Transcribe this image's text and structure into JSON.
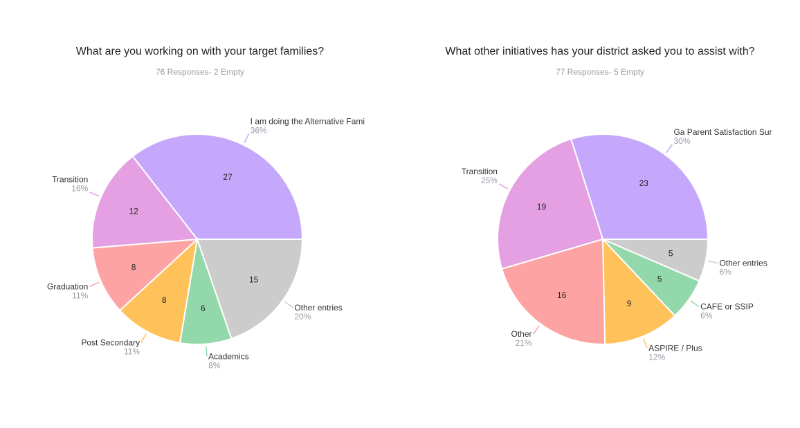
{
  "chart_data": [
    {
      "type": "pie",
      "title": "What are you working on with your target families?",
      "subtitle": "76 Responses- 2 Empty",
      "slices": [
        {
          "label": "I am doing the Alternative Fami",
          "value": 27,
          "percent": "36%",
          "color": "#c5a8fb"
        },
        {
          "label": "Other entries",
          "value": 15,
          "percent": "20%",
          "color": "#cccccc"
        },
        {
          "label": "Academics",
          "value": 6,
          "percent": "8%",
          "color": "#93d8aa"
        },
        {
          "label": "Post Secondary",
          "value": 8,
          "percent": "11%",
          "color": "#ffc25a"
        },
        {
          "label": "Graduation",
          "value": 8,
          "percent": "11%",
          "color": "#fea3a3"
        },
        {
          "label": "Transition",
          "value": 12,
          "percent": "16%",
          "color": "#e4a0e2"
        }
      ]
    },
    {
      "type": "pie",
      "title": "What other initiatives has your district asked you to assist with?",
      "subtitle": "77 Responses- 5 Empty",
      "slices": [
        {
          "label": "Ga Parent Satisfaction Sur",
          "value": 23,
          "percent": "30%",
          "color": "#c5a8fb"
        },
        {
          "label": "Other entries",
          "value": 5,
          "percent": "6%",
          "color": "#cccccc"
        },
        {
          "label": "CAFE or SSIP",
          "value": 5,
          "percent": "6%",
          "color": "#93d8aa"
        },
        {
          "label": "ASPIRE / Plus",
          "value": 9,
          "percent": "12%",
          "color": "#ffc25a"
        },
        {
          "label": "Other",
          "value": 16,
          "percent": "21%",
          "color": "#fea3a3"
        },
        {
          "label": "Transition",
          "value": 19,
          "percent": "25%",
          "color": "#e4a0e2"
        }
      ]
    }
  ]
}
